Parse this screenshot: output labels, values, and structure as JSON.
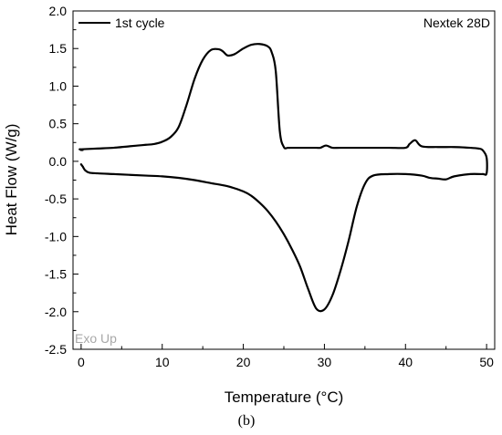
{
  "chart_data": {
    "type": "line",
    "title": "",
    "xlabel": "Temperature (°C)",
    "ylabel": "Heat Flow (W/g)",
    "xlim": [
      -1,
      51
    ],
    "ylim": [
      -2.5,
      2.0
    ],
    "xticks": [
      0,
      10,
      20,
      30,
      40,
      50
    ],
    "yticks": [
      2.0,
      1.5,
      1.0,
      0.5,
      0.0,
      -0.5,
      -1.0,
      -1.5,
      -2.0,
      -2.5
    ],
    "grid": false,
    "legend": {
      "position": "top-left",
      "entries": [
        "1st cycle"
      ]
    },
    "annotations": {
      "sample": "Nextek 28D",
      "exo": "Exo Up",
      "panel": "(b)"
    },
    "series": [
      {
        "name": "1st cycle",
        "color": "#000000",
        "x": [
          0,
          0.2,
          0.5,
          1,
          2,
          4,
          6,
          8,
          10,
          12,
          14,
          16,
          18,
          20,
          21,
          22,
          23,
          24,
          25,
          26,
          27,
          28,
          29,
          30,
          31,
          32,
          33,
          34,
          35,
          36,
          38,
          40,
          42,
          43,
          44,
          45,
          46,
          48,
          49.5,
          50,
          50,
          49.5,
          49,
          48,
          46,
          44,
          42,
          41.2,
          40.5,
          40,
          38,
          36,
          34,
          32,
          31,
          30.2,
          29.5,
          29,
          28,
          27,
          26,
          25.5,
          25,
          24.5,
          24,
          23.5,
          23,
          22,
          21,
          20,
          19,
          18.5,
          18,
          17.5,
          17,
          16,
          15,
          14,
          13,
          12,
          11,
          10,
          9,
          8,
          7,
          6,
          4,
          2,
          0,
          -0.1,
          0,
          0.2
        ],
        "y": [
          -0.04,
          -0.07,
          -0.12,
          -0.15,
          -0.16,
          -0.17,
          -0.18,
          -0.19,
          -0.2,
          -0.22,
          -0.25,
          -0.29,
          -0.33,
          -0.4,
          -0.46,
          -0.55,
          -0.66,
          -0.8,
          -0.97,
          -1.17,
          -1.4,
          -1.7,
          -1.96,
          -1.97,
          -1.78,
          -1.45,
          -1.05,
          -0.6,
          -0.3,
          -0.19,
          -0.17,
          -0.17,
          -0.19,
          -0.22,
          -0.23,
          -0.24,
          -0.2,
          -0.17,
          -0.17,
          -0.16,
          0.05,
          0.15,
          0.17,
          0.18,
          0.19,
          0.19,
          0.2,
          0.28,
          0.23,
          0.18,
          0.18,
          0.18,
          0.18,
          0.18,
          0.18,
          0.21,
          0.18,
          0.18,
          0.18,
          0.18,
          0.18,
          0.18,
          0.19,
          0.4,
          1.2,
          1.45,
          1.53,
          1.56,
          1.55,
          1.5,
          1.43,
          1.41,
          1.41,
          1.46,
          1.49,
          1.48,
          1.35,
          1.1,
          0.75,
          0.45,
          0.32,
          0.26,
          0.23,
          0.22,
          0.21,
          0.2,
          0.18,
          0.17,
          0.16,
          0.16,
          0.15,
          0.15
        ]
      }
    ]
  }
}
